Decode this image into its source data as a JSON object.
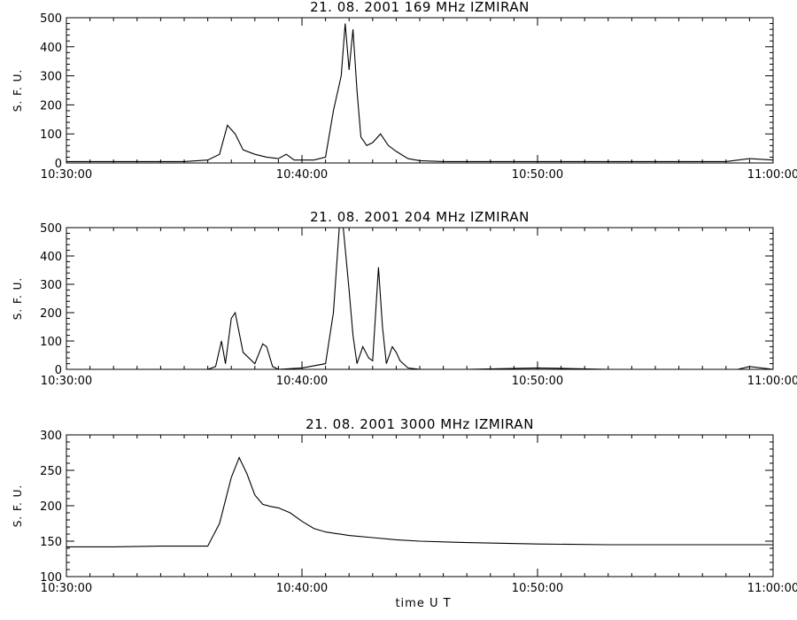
{
  "chart_data": [
    {
      "type": "line",
      "title": "21.  08.  2001    169  MHz    IZMIRAN",
      "ylabel": "S. F. U.",
      "xlabel": "",
      "xlim": [
        "10:30:00",
        "11:00:00"
      ],
      "ylim": [
        0,
        500
      ],
      "yticks": [
        0,
        100,
        200,
        300,
        400,
        500
      ],
      "xticks": [
        "10:30:00",
        "10:40:00",
        "10:50:00",
        "11:00:00"
      ],
      "grid": false,
      "series": [
        {
          "x": [
            "10:30:00",
            "10:31:00",
            "10:32:00",
            "10:33:00",
            "10:34:00",
            "10:35:00",
            "10:36:00",
            "10:36:30",
            "10:36:50",
            "10:37:10",
            "10:37:30",
            "10:38:00",
            "10:38:30",
            "10:39:00",
            "10:39:20",
            "10:39:40",
            "10:40:30",
            "10:41:00",
            "10:41:20",
            "10:41:40",
            "10:41:50",
            "10:42:00",
            "10:42:10",
            "10:42:20",
            "10:42:30",
            "10:42:45",
            "10:43:00",
            "10:43:20",
            "10:43:40",
            "10:44:00",
            "10:44:30",
            "10:45:00",
            "10:46:00",
            "10:47:00",
            "10:48:00",
            "10:49:00",
            "10:50:00",
            "10:51:00",
            "10:52:00",
            "10:53:00",
            "10:54:00",
            "10:55:00",
            "10:56:00",
            "10:57:00",
            "10:58:00",
            "10:59:00",
            "11:00:00"
          ],
          "values": [
            5,
            5,
            5,
            5,
            5,
            5,
            10,
            30,
            130,
            100,
            45,
            30,
            20,
            15,
            30,
            10,
            10,
            20,
            180,
            300,
            480,
            320,
            460,
            250,
            90,
            60,
            70,
            100,
            60,
            40,
            15,
            8,
            5,
            5,
            5,
            5,
            5,
            5,
            5,
            5,
            5,
            5,
            5,
            5,
            5,
            15,
            10
          ]
        }
      ]
    },
    {
      "type": "line",
      "title": "21.  08.  2001    204  MHz    IZMIRAN",
      "ylabel": "S. F. U.",
      "xlabel": "",
      "xlim": [
        "10:30:00",
        "11:00:00"
      ],
      "ylim": [
        0,
        500
      ],
      "yticks": [
        0,
        100,
        200,
        300,
        400,
        500
      ],
      "xticks": [
        "10:30:00",
        "10:40:00",
        "10:50:00",
        "11:00:00"
      ],
      "grid": false,
      "series": [
        {
          "x": [
            "10:30:00",
            "10:32:00",
            "10:34:00",
            "10:36:00",
            "10:36:20",
            "10:36:35",
            "10:36:45",
            "10:37:00",
            "10:37:10",
            "10:37:30",
            "10:38:00",
            "10:38:20",
            "10:38:30",
            "10:38:45",
            "10:39:00",
            "10:40:00",
            "10:41:00",
            "10:41:20",
            "10:41:35",
            "10:41:45",
            "10:42:00",
            "10:42:10",
            "10:42:20",
            "10:42:35",
            "10:42:50",
            "10:43:00",
            "10:43:15",
            "10:43:25",
            "10:43:35",
            "10:43:50",
            "10:44:00",
            "10:44:10",
            "10:44:30",
            "10:45:00",
            "10:47:00",
            "10:50:00",
            "10:53:00",
            "10:55:00",
            "10:57:00",
            "10:58:30",
            "10:59:00",
            "11:00:00"
          ],
          "values": [
            0,
            0,
            0,
            0,
            10,
            100,
            20,
            180,
            200,
            60,
            20,
            90,
            80,
            10,
            0,
            5,
            20,
            200,
            500,
            500,
            280,
            120,
            20,
            80,
            40,
            30,
            360,
            150,
            20,
            80,
            60,
            30,
            5,
            0,
            0,
            5,
            0,
            0,
            0,
            0,
            10,
            0
          ]
        }
      ]
    },
    {
      "type": "line",
      "title": "21.  08.  2001     3000  MHz    IZMIRAN",
      "ylabel": "S. F. U.",
      "xlabel": "time   U T",
      "xlim": [
        "10:30:00",
        "11:00:00"
      ],
      "ylim": [
        100,
        300
      ],
      "yticks": [
        100,
        150,
        200,
        250,
        300
      ],
      "xticks": [
        "10:30:00",
        "10:40:00",
        "10:50:00",
        "11:00:00"
      ],
      "grid": false,
      "series": [
        {
          "x": [
            "10:30:00",
            "10:32:00",
            "10:34:00",
            "10:36:00",
            "10:36:30",
            "10:37:00",
            "10:37:20",
            "10:37:40",
            "10:38:00",
            "10:38:20",
            "10:38:40",
            "10:39:00",
            "10:39:30",
            "10:40:00",
            "10:40:30",
            "10:41:00",
            "10:42:00",
            "10:43:00",
            "10:44:00",
            "10:45:00",
            "10:47:00",
            "10:50:00",
            "10:53:00",
            "10:56:00",
            "11:00:00"
          ],
          "values": [
            142,
            142,
            143,
            143,
            175,
            240,
            268,
            245,
            215,
            202,
            199,
            197,
            190,
            178,
            168,
            163,
            158,
            155,
            152,
            150,
            148,
            146,
            145,
            145,
            145
          ]
        }
      ]
    }
  ]
}
